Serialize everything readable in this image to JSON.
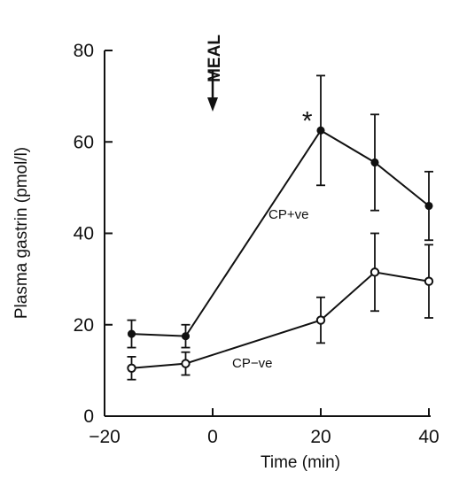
{
  "chart_data": {
    "type": "line",
    "xlabel": "Time (min)",
    "ylabel": "Plasma gastrin (pmol/l)",
    "xlim": [
      -20,
      40
    ],
    "ylim": [
      0,
      80
    ],
    "x_ticks": [
      -20,
      0,
      20,
      40
    ],
    "y_ticks": [
      0,
      20,
      40,
      60,
      80
    ],
    "x_tick_labels": [
      "−20",
      "0",
      "20",
      "40"
    ],
    "y_tick_labels": [
      "0",
      "20",
      "40",
      "60",
      "80"
    ],
    "grid": false,
    "series": [
      {
        "name": "CP+ve",
        "marker": "filled-circle",
        "x": [
          -15,
          -5,
          20,
          30,
          40
        ],
        "y": [
          18,
          17.5,
          62.5,
          55.5,
          46
        ],
        "err": [
          3,
          2.5,
          12,
          10.5,
          7.5
        ]
      },
      {
        "name": "CP−ve",
        "marker": "open-circle",
        "x": [
          -15,
          -5,
          20,
          30,
          40
        ],
        "y": [
          10.5,
          11.5,
          21,
          31.5,
          29.5
        ],
        "err": [
          2.5,
          2.5,
          5,
          8.5,
          8
        ]
      }
    ],
    "annotations": {
      "meal_text": "MEAL",
      "meal_x": 0,
      "significance_text": "*",
      "significance_x": 17.5,
      "significance_y": 66.5
    }
  },
  "colors": {
    "ink": "#111111",
    "background": "#ffffff"
  }
}
